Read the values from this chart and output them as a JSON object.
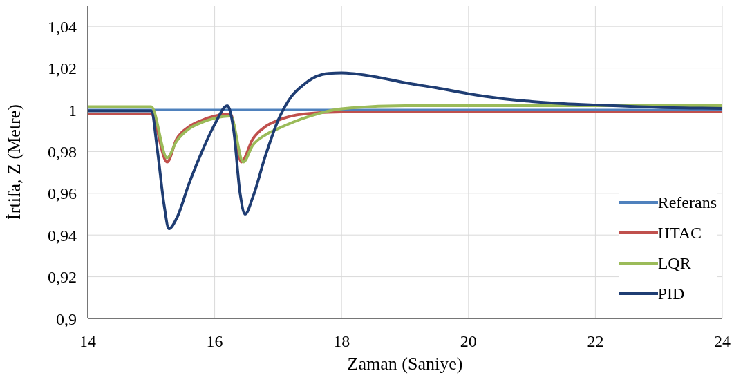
{
  "chart_data": {
    "type": "line",
    "xlabel": "Zaman  (Saniye)",
    "ylabel": "İrtifa, Z (Metre)",
    "xlim": [
      14,
      24
    ],
    "xticks": [
      14,
      16,
      18,
      20,
      22,
      24
    ],
    "ylim": [
      0.9,
      1.05
    ],
    "yticks": [
      {
        "value": 0.9,
        "label": "0,9"
      },
      {
        "value": 0.92,
        "label": "0,92"
      },
      {
        "value": 0.94,
        "label": "0,94"
      },
      {
        "value": 0.96,
        "label": "0,96"
      },
      {
        "value": 0.98,
        "label": "0,98"
      },
      {
        "value": 1,
        "label": "1"
      },
      {
        "value": 1.02,
        "label": "1,02"
      },
      {
        "value": 1.04,
        "label": "1,04"
      }
    ],
    "grid": true,
    "legend": "bottom right",
    "marker": "none",
    "line_style": "solid",
    "series": [
      {
        "name": "Referans",
        "color": "#4f81bd",
        "x": [
          14,
          24
        ],
        "values": [
          1,
          1
        ]
      },
      {
        "name": "HTAC",
        "color": "#c0504d",
        "x": [
          14,
          15,
          15.25,
          15.4,
          15.6,
          15.8,
          16,
          16.25,
          16.42,
          16.6,
          16.8,
          17,
          17.4,
          18,
          24
        ],
        "values": [
          0.998,
          0.998,
          0.975,
          0.986,
          0.992,
          0.995,
          0.997,
          0.998,
          0.975,
          0.986,
          0.992,
          0.995,
          0.998,
          0.999,
          0.999
        ]
      },
      {
        "name": "LQR",
        "color": "#9bbb59",
        "x": [
          14,
          15,
          15.25,
          15.4,
          15.6,
          15.8,
          16,
          16.25,
          16.45,
          16.6,
          16.8,
          17,
          17.5,
          18,
          19,
          20,
          24
        ],
        "values": [
          1.0015,
          1.0015,
          0.977,
          0.985,
          0.991,
          0.994,
          0.996,
          0.997,
          0.975,
          0.983,
          0.988,
          0.991,
          0.997,
          1.0005,
          1.002,
          1.002,
          1.002
        ]
      },
      {
        "name": "PID",
        "color": "#1f3d73",
        "x": [
          14,
          15,
          15.1,
          15.2,
          15.28,
          15.4,
          15.6,
          15.8,
          16,
          16.2,
          16.3,
          16.4,
          16.48,
          16.6,
          16.8,
          17,
          17.2,
          17.4,
          17.6,
          17.8,
          18,
          18.5,
          19,
          19.5,
          20,
          20.5,
          21,
          21.5,
          22,
          23,
          24
        ],
        "values": [
          0.9995,
          0.9995,
          0.98,
          0.955,
          0.943,
          0.948,
          0.965,
          0.98,
          0.993,
          1.002,
          0.99,
          0.96,
          0.95,
          0.958,
          0.978,
          0.995,
          1.006,
          1.012,
          1.016,
          1.0175,
          1.0177,
          1.016,
          1.013,
          1.0105,
          1.0077,
          1.0055,
          1.004,
          1.003,
          1.0023,
          1.0012,
          1.0007
        ]
      }
    ]
  }
}
